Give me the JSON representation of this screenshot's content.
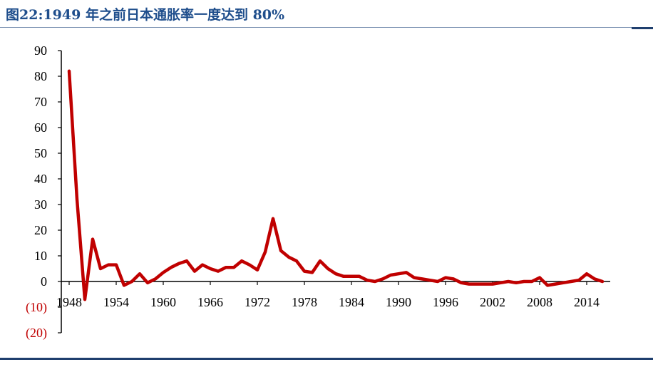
{
  "title": "图22:1949 年之前日本通胀率一度达到 80%",
  "chart_data": {
    "type": "line",
    "title": "图22:1949 年之前日本通胀率一度达到 80%",
    "xlabel": "",
    "ylabel": "",
    "x_range": [
      1947,
      2017
    ],
    "ylim": [
      -20,
      90
    ],
    "y_ticks": [
      90,
      80,
      70,
      60,
      50,
      40,
      30,
      20,
      10,
      0,
      -10,
      -20
    ],
    "y_tick_labels": [
      "90",
      "80",
      "70",
      "60",
      "50",
      "40",
      "30",
      "20",
      "10",
      "0",
      "(10)",
      "(20)"
    ],
    "x_ticks": [
      1948,
      1954,
      1960,
      1966,
      1972,
      1978,
      1984,
      1990,
      1996,
      2002,
      2008,
      2014
    ],
    "x_tick_labels": [
      "1948",
      "1954",
      "1960",
      "1966",
      "1972",
      "1978",
      "1984",
      "1990",
      "1996",
      "2002",
      "2008",
      "2014"
    ],
    "grid": false,
    "legend": "none",
    "series_color": "#c00000",
    "series": [
      {
        "x": [
          1948,
          1949,
          1950,
          1951,
          1952,
          1953,
          1954,
          1955,
          1956,
          1957,
          1958,
          1959,
          1960,
          1961,
          1962,
          1963,
          1964,
          1965,
          1966,
          1967,
          1968,
          1969,
          1970,
          1971,
          1972,
          1973,
          1974,
          1975,
          1976,
          1977,
          1978,
          1979,
          1980,
          1981,
          1982,
          1983,
          1984,
          1985,
          1986,
          1987,
          1988,
          1989,
          1990,
          1991,
          1992,
          1993,
          1994,
          1995,
          1996,
          1997,
          1998,
          1999,
          2000,
          2001,
          2002,
          2003,
          2004,
          2005,
          2006,
          2007,
          2008,
          2009,
          2010,
          2011,
          2012,
          2013,
          2014,
          2015,
          2016
        ],
        "y": [
          82,
          32,
          -7,
          16.5,
          5,
          6.5,
          6.5,
          -1.5,
          0,
          3,
          -0.5,
          1,
          3.5,
          5.5,
          7,
          8,
          4,
          6.5,
          5,
          4,
          5.5,
          5.5,
          8,
          6.5,
          4.5,
          11.5,
          24.5,
          12,
          9.5,
          8,
          4,
          3.5,
          8,
          5,
          3,
          2,
          2,
          2,
          0.5,
          0,
          1,
          2.5,
          3,
          3.5,
          1.5,
          1,
          0.5,
          0,
          1.5,
          1,
          -0.5,
          -1,
          -1,
          -1,
          -1,
          -0.5,
          0,
          -0.5,
          0,
          0,
          1.5,
          -1.5,
          -1,
          -0.5,
          0,
          0.5,
          3,
          1,
          0
        ]
      }
    ]
  }
}
